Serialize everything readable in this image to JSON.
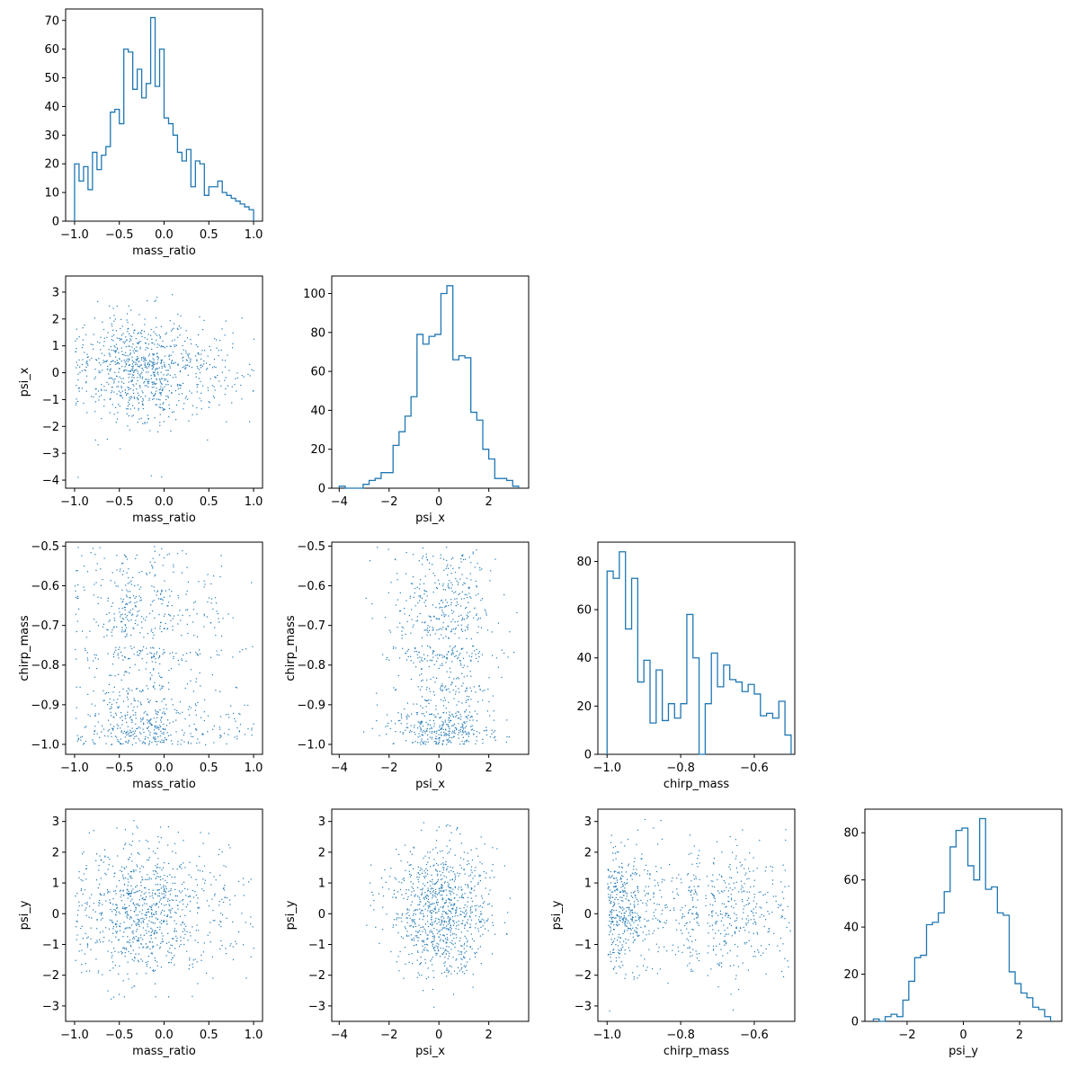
{
  "chart_data": {
    "type": "corner",
    "variables": [
      "mass_ratio",
      "psi_x",
      "chirp_mass",
      "psi_y"
    ],
    "histograms": [
      {
        "variable": "mass_ratio",
        "type": "histogram",
        "xlim": [
          -1.1,
          1.1
        ],
        "ylim": [
          0,
          74
        ],
        "xticks": [
          -1.0,
          -0.5,
          0.0,
          0.5,
          1.0
        ],
        "yticks": [
          0,
          10,
          20,
          30,
          40,
          50,
          60,
          70
        ],
        "xlabel": "mass_ratio",
        "bin_edges": [
          -1.0,
          -0.95,
          -0.9,
          -0.85,
          -0.8,
          -0.75,
          -0.7,
          -0.65,
          -0.6,
          -0.55,
          -0.5,
          -0.45,
          -0.4,
          -0.35,
          -0.3,
          -0.25,
          -0.2,
          -0.15,
          -0.1,
          -0.05,
          0.0,
          0.05,
          0.1,
          0.15,
          0.2,
          0.25,
          0.3,
          0.35,
          0.4,
          0.45,
          0.5,
          0.55,
          0.6,
          0.65,
          0.7,
          0.75,
          0.8,
          0.85,
          0.9,
          0.95,
          1.0
        ],
        "counts": [
          20,
          14,
          19,
          11,
          24,
          18,
          23,
          26,
          38,
          39,
          34,
          60,
          59,
          46,
          53,
          43,
          48,
          71,
          47,
          60,
          36,
          34,
          30,
          24,
          21,
          25,
          12,
          21,
          20,
          9,
          12,
          12,
          14,
          10,
          9,
          8,
          7,
          6,
          5,
          4
        ]
      },
      {
        "variable": "psi_x",
        "type": "histogram",
        "xlim": [
          -4.3,
          3.6
        ],
        "ylim": [
          0,
          109
        ],
        "xticks": [
          -4,
          -2,
          0,
          2
        ],
        "yticks": [
          0,
          20,
          40,
          60,
          80,
          100
        ],
        "xlabel": "psi_x",
        "bin_edges": [
          -4.0,
          -3.76,
          -3.52,
          -3.28,
          -3.04,
          -2.8,
          -2.56,
          -2.32,
          -2.08,
          -1.84,
          -1.6,
          -1.36,
          -1.12,
          -0.88,
          -0.64,
          -0.4,
          -0.16,
          0.08,
          0.32,
          0.56,
          0.8,
          1.04,
          1.28,
          1.52,
          1.76,
          2.0,
          2.24,
          2.48,
          2.72,
          2.96,
          3.2
        ],
        "counts": [
          1,
          0,
          0,
          0,
          2,
          4,
          5,
          8,
          8,
          22,
          29,
          37,
          47,
          79,
          74,
          78,
          79,
          100,
          104,
          66,
          68,
          67,
          39,
          35,
          20,
          15,
          5,
          5,
          4,
          1
        ]
      },
      {
        "variable": "chirp_mass",
        "type": "histogram",
        "xlim": [
          -1.025,
          -0.49
        ],
        "ylim": [
          0,
          88
        ],
        "xticks": [
          -1.0,
          -0.8,
          -0.6
        ],
        "yticks": [
          0,
          20,
          40,
          60,
          80
        ],
        "xlabel": "chirp_mass",
        "bin_edges": [
          -1.0,
          -0.98333,
          -0.96667,
          -0.95,
          -0.93333,
          -0.91667,
          -0.9,
          -0.88333,
          -0.86667,
          -0.85,
          -0.83333,
          -0.81667,
          -0.8,
          -0.78333,
          -0.76667,
          -0.75,
          -0.73333,
          -0.71667,
          -0.7,
          -0.68333,
          -0.66667,
          -0.65,
          -0.63333,
          -0.61667,
          -0.6,
          -0.58333,
          -0.56667,
          -0.55,
          -0.53333,
          -0.51667,
          -0.5
        ],
        "counts": [
          76,
          73,
          84,
          52,
          73,
          30,
          39,
          13,
          35,
          14,
          21,
          15,
          21,
          58,
          40,
          0,
          21,
          42,
          28,
          37,
          31,
          30,
          26,
          29,
          25,
          16,
          17,
          15,
          22,
          8
        ]
      },
      {
        "variable": "psi_y",
        "type": "histogram",
        "xlim": [
          -3.5,
          3.5
        ],
        "ylim": [
          0,
          90
        ],
        "xticks": [
          -2,
          0,
          2
        ],
        "yticks": [
          0,
          20,
          40,
          60,
          80
        ],
        "xlabel": "psi_y",
        "bin_edges": [
          -3.2,
          -2.99,
          -2.78,
          -2.57,
          -2.36,
          -2.15,
          -1.94,
          -1.73,
          -1.52,
          -1.31,
          -1.1,
          -0.89,
          -0.68,
          -0.47,
          -0.26,
          -0.05,
          0.16,
          0.37,
          0.58,
          0.79,
          1.0,
          1.21,
          1.42,
          1.63,
          1.84,
          2.05,
          2.26,
          2.47,
          2.68,
          2.89,
          3.1
        ],
        "counts": [
          1,
          0,
          2,
          3,
          2,
          9,
          17,
          27,
          28,
          41,
          42,
          46,
          55,
          74,
          81,
          82,
          66,
          60,
          86,
          56,
          57,
          46,
          45,
          21,
          16,
          12,
          10,
          6,
          5,
          2
        ]
      }
    ],
    "scatters": [
      {
        "x": "mass_ratio",
        "y": "psi_x",
        "xlim": [
          -1.1,
          1.1
        ],
        "ylim": [
          -4.3,
          3.6
        ],
        "xticks": [
          -1.0,
          -0.5,
          0.0,
          0.5,
          1.0
        ],
        "yticks": [
          -4,
          -3,
          -2,
          -1,
          0,
          1,
          2,
          3
        ],
        "xlabel": "mass_ratio",
        "ylabel": "psi_x"
      },
      {
        "x": "mass_ratio",
        "y": "chirp_mass",
        "xlim": [
          -1.1,
          1.1
        ],
        "ylim": [
          -1.025,
          -0.49
        ],
        "xticks": [
          -1.0,
          -0.5,
          0.0,
          0.5,
          1.0
        ],
        "yticks": [
          -1.0,
          -0.9,
          -0.8,
          -0.7,
          -0.6,
          -0.5
        ],
        "xlabel": "mass_ratio",
        "ylabel": "chirp_mass"
      },
      {
        "x": "psi_x",
        "y": "chirp_mass",
        "xlim": [
          -4.3,
          3.6
        ],
        "ylim": [
          -1.025,
          -0.49
        ],
        "xticks": [
          -4,
          -2,
          0,
          2
        ],
        "yticks": [
          -1.0,
          -0.9,
          -0.8,
          -0.7,
          -0.6,
          -0.5
        ],
        "xlabel": "psi_x",
        "ylabel": "chirp_mass"
      },
      {
        "x": "mass_ratio",
        "y": "psi_y",
        "xlim": [
          -1.1,
          1.1
        ],
        "ylim": [
          -3.5,
          3.4
        ],
        "xticks": [
          -1.0,
          -0.5,
          0.0,
          0.5,
          1.0
        ],
        "yticks": [
          -3,
          -2,
          -1,
          0,
          1,
          2,
          3
        ],
        "xlabel": "mass_ratio",
        "ylabel": "psi_y"
      },
      {
        "x": "psi_x",
        "y": "psi_y",
        "xlim": [
          -4.3,
          3.6
        ],
        "ylim": [
          -3.5,
          3.4
        ],
        "xticks": [
          -4,
          -2,
          0,
          2
        ],
        "yticks": [
          -3,
          -2,
          -1,
          0,
          1,
          2,
          3
        ],
        "xlabel": "psi_x",
        "ylabel": "psi_y"
      },
      {
        "x": "chirp_mass",
        "y": "psi_y",
        "xlim": [
          -1.025,
          -0.49
        ],
        "ylim": [
          -3.5,
          3.4
        ],
        "xticks": [
          -1.0,
          -0.8,
          -0.6
        ],
        "yticks": [
          -3,
          -2,
          -1,
          0,
          1,
          2,
          3
        ],
        "xlabel": "chirp_mass",
        "ylabel": "psi_y"
      }
    ],
    "colors": {
      "series": "#1f77b4",
      "axes": "#000000"
    },
    "grid": false
  }
}
